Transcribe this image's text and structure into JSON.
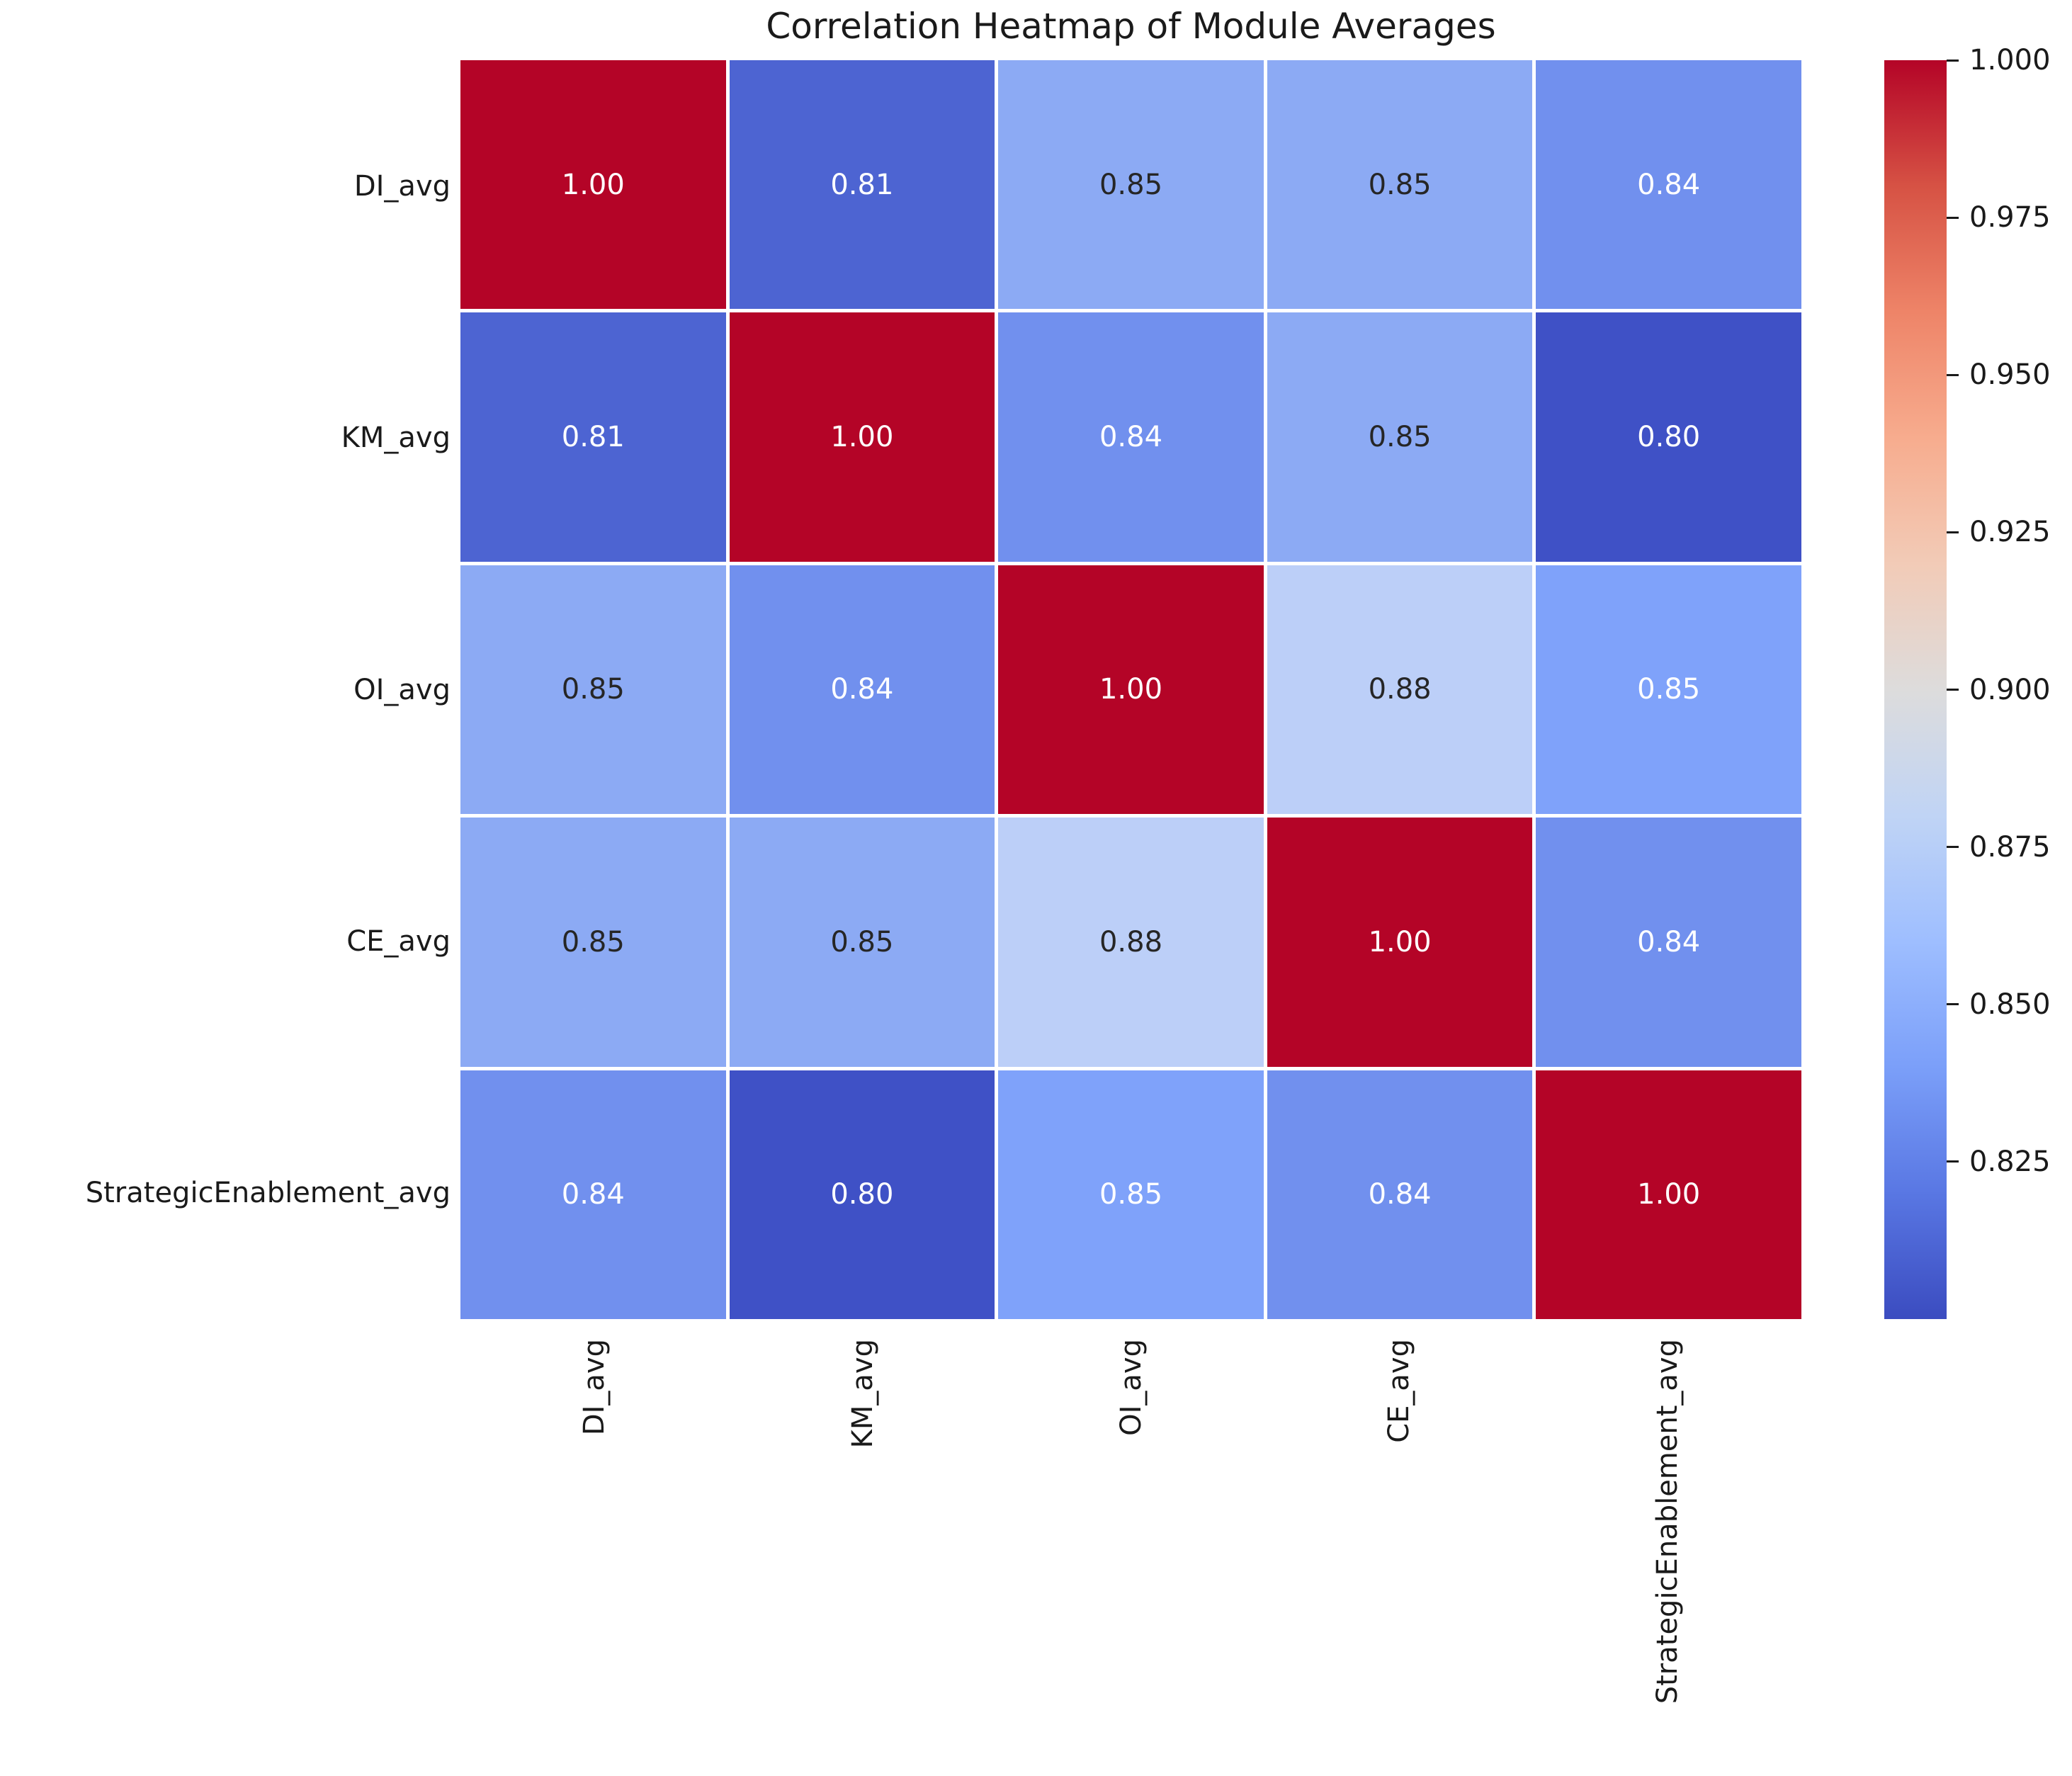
{
  "figure": {
    "background": "#ffffff"
  },
  "chart_data": {
    "type": "heatmap",
    "title": "Correlation Heatmap of Module Averages",
    "categories": [
      "DI_avg",
      "KM_avg",
      "OI_avg",
      "CE_avg",
      "StrategicEnablement_avg"
    ],
    "x_tick_labels": [
      "DI_avg",
      "KM_avg",
      "OI_avg",
      "CE_avg",
      "StrategicEnablement_avg"
    ],
    "y_tick_labels": [
      "DI_avg",
      "KM_avg",
      "OI_avg",
      "CE_avg",
      "StrategicEnablement_avg"
    ],
    "values": [
      [
        1.0,
        0.81,
        0.85,
        0.85,
        0.84
      ],
      [
        0.81,
        1.0,
        0.84,
        0.85,
        0.8
      ],
      [
        0.85,
        0.84,
        1.0,
        0.88,
        0.85
      ],
      [
        0.85,
        0.85,
        0.88,
        1.0,
        0.84
      ],
      [
        0.84,
        0.8,
        0.85,
        0.84,
        1.0
      ]
    ],
    "cell_labels": [
      [
        "1.00",
        "0.81",
        "0.85",
        "0.85",
        "0.84"
      ],
      [
        "0.81",
        "1.00",
        "0.84",
        "0.85",
        "0.80"
      ],
      [
        "0.85",
        "0.84",
        "1.00",
        "0.88",
        "0.85"
      ],
      [
        "0.85",
        "0.85",
        "0.88",
        "1.00",
        "0.84"
      ],
      [
        "0.84",
        "0.80",
        "0.85",
        "0.84",
        "1.00"
      ]
    ],
    "cell_colors": [
      [
        "#b40427",
        "#4d64d2",
        "#8caaf4",
        "#8caaf4",
        "#7190ee"
      ],
      [
        "#4d64d2",
        "#b40427",
        "#7190ee",
        "#8caaf4",
        "#3f51c6"
      ],
      [
        "#8caaf4",
        "#7190ee",
        "#b40427",
        "#bccff8",
        "#7fa2fa"
      ],
      [
        "#8caaf4",
        "#8caaf4",
        "#bccff8",
        "#b40427",
        "#7190ee"
      ],
      [
        "#7190ee",
        "#3f51c6",
        "#7fa2fa",
        "#7190ee",
        "#b40427"
      ]
    ],
    "cell_text_colors": [
      [
        "#ffffff",
        "#ffffff",
        "#262626",
        "#262626",
        "#ffffff"
      ],
      [
        "#ffffff",
        "#ffffff",
        "#ffffff",
        "#262626",
        "#ffffff"
      ],
      [
        "#262626",
        "#ffffff",
        "#ffffff",
        "#262626",
        "#ffffff"
      ],
      [
        "#262626",
        "#262626",
        "#262626",
        "#ffffff",
        "#ffffff"
      ],
      [
        "#ffffff",
        "#ffffff",
        "#ffffff",
        "#ffffff",
        "#ffffff"
      ]
    ],
    "vmin": 0.8,
    "vmax": 1.0,
    "grid": false,
    "legend_position": "right",
    "colorbar": {
      "tick_labels": [
        "1.000",
        "0.975",
        "0.950",
        "0.925",
        "0.900",
        "0.875",
        "0.850",
        "0.825"
      ],
      "colormap_name": "coolwarm",
      "gradient_top_to_bottom": [
        "#b40427",
        "#d65244",
        "#ee8468",
        "#f7ac8e",
        "#f2cbb7",
        "#dddcdc",
        "#c0d4f5",
        "#9ebeff",
        "#7b9ff9",
        "#5977e3",
        "#3b4cc0"
      ]
    },
    "linecolor": "#ffffff",
    "annotation_font_px": 40
  }
}
